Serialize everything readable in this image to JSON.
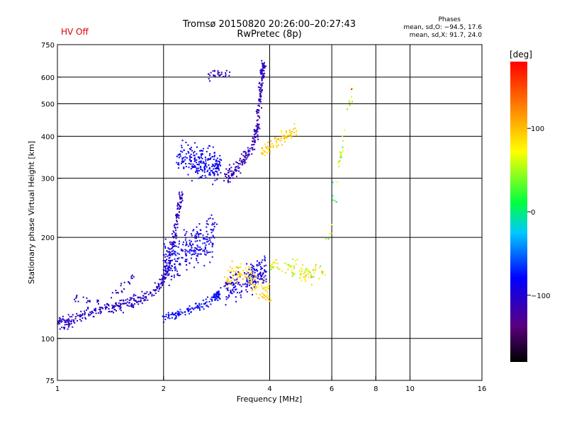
{
  "header": {
    "title": "Tromsø 20150820 20:26:00–20:27:43",
    "subtitle": "RwPretec (8p)",
    "status": "HV Off",
    "status_color": "#e00000"
  },
  "stats": {
    "heading": "Phases",
    "line_o": "mean, sd,O: −94.5, 17.6",
    "line_x": "mean, sd,X:  91.7, 24.0"
  },
  "colorbar": {
    "label": "[deg]",
    "ticks": [
      "100",
      "0",
      "−100"
    ],
    "tick_values": [
      100,
      0,
      -100
    ],
    "range": [
      -180,
      180
    ]
  },
  "chart_data": {
    "type": "scatter",
    "xlabel": "Frequency [MHz]",
    "ylabel": "Stationary phase Virtual Height [km]",
    "xscale": "log",
    "yscale": "log",
    "xlim": [
      1,
      16
    ],
    "ylim": [
      75,
      750
    ],
    "xticks": [
      1,
      2,
      4,
      6,
      8,
      10,
      16
    ],
    "xtick_labels": [
      "1",
      "2",
      "4",
      "6",
      "8",
      "10",
      "16"
    ],
    "yticks": [
      75,
      100,
      200,
      300,
      400,
      500,
      600,
      750
    ],
    "ytick_labels": [
      "75",
      "100",
      "200",
      "300",
      "400",
      "500",
      "600",
      "750"
    ],
    "vgrid": [
      2,
      4,
      6,
      8,
      10
    ],
    "hgrid": [
      100,
      200,
      300,
      400,
      500,
      600
    ],
    "grid": true,
    "color_by": "phase [deg]",
    "trace_groups": [
      {
        "points": [
          [
            1.0,
            113
          ],
          [
            1.05,
            111
          ],
          [
            1.1,
            114
          ],
          [
            1.2,
            118
          ],
          [
            1.3,
            121
          ],
          [
            1.4,
            124
          ],
          [
            1.5,
            126
          ],
          [
            1.6,
            128
          ],
          [
            1.7,
            131
          ],
          [
            1.8,
            134
          ],
          [
            1.9,
            140
          ],
          [
            2.0,
            148
          ],
          [
            2.05,
            160
          ],
          [
            2.1,
            178
          ],
          [
            2.15,
            200
          ],
          [
            2.2,
            235
          ],
          [
            2.25,
            270
          ]
        ],
        "spread": 0.035,
        "n": 420,
        "phase": -105,
        "phase_sd": 10
      },
      {
        "points": [
          [
            1.1,
            134
          ],
          [
            1.2,
            130
          ],
          [
            1.3,
            128
          ],
          [
            1.45,
            136
          ],
          [
            1.55,
            145
          ],
          [
            1.65,
            150
          ]
        ],
        "spread": 0.03,
        "n": 40,
        "phase": -105,
        "phase_sd": 10
      },
      {
        "points": [
          [
            2.0,
            116
          ],
          [
            2.2,
            118
          ],
          [
            2.4,
            122
          ],
          [
            2.6,
            126
          ],
          [
            2.8,
            132
          ],
          [
            2.9,
            138
          ]
        ],
        "spread": 0.025,
        "n": 140,
        "phase": -80,
        "phase_sd": 12
      },
      {
        "points": [
          [
            2.0,
            170
          ],
          [
            2.2,
            175
          ],
          [
            2.4,
            185
          ],
          [
            2.6,
            195
          ],
          [
            2.8,
            205
          ]
        ],
        "spread": 0.12,
        "n": 260,
        "phase": -90,
        "phase_sd": 20
      },
      {
        "points": [
          [
            2.2,
            350
          ],
          [
            2.4,
            340
          ],
          [
            2.6,
            330
          ],
          [
            2.8,
            328
          ],
          [
            2.9,
            325
          ]
        ],
        "spread": 0.09,
        "n": 230,
        "phase": -85,
        "phase_sd": 15
      },
      {
        "points": [
          [
            2.7,
            600
          ],
          [
            2.8,
            610
          ],
          [
            3.1,
            615
          ]
        ],
        "spread": 0.03,
        "n": 30,
        "phase": -110,
        "phase_sd": 10
      },
      {
        "points": [
          [
            3.0,
            300
          ],
          [
            3.2,
            320
          ],
          [
            3.4,
            345
          ],
          [
            3.6,
            380
          ],
          [
            3.7,
            430
          ],
          [
            3.75,
            520
          ],
          [
            3.8,
            610
          ],
          [
            3.85,
            650
          ]
        ],
        "spread": 0.04,
        "n": 260,
        "phase": -110,
        "phase_sd": 15
      },
      {
        "points": [
          [
            3.0,
            140
          ],
          [
            3.2,
            145
          ],
          [
            3.5,
            150
          ],
          [
            3.7,
            155
          ],
          [
            3.9,
            160
          ]
        ],
        "spread": 0.08,
        "n": 200,
        "phase": -95,
        "phase_sd": 20
      },
      {
        "points": [
          [
            3.0,
            150
          ],
          [
            3.2,
            160
          ],
          [
            3.5,
            150
          ],
          [
            3.8,
            140
          ],
          [
            4.0,
            135
          ]
        ],
        "spread": 0.06,
        "n": 110,
        "phase": 90,
        "phase_sd": 15
      },
      {
        "points": [
          [
            3.8,
            360
          ],
          [
            4.0,
            370
          ],
          [
            4.2,
            390
          ],
          [
            4.5,
            400
          ],
          [
            4.8,
            420
          ]
        ],
        "spread": 0.04,
        "n": 80,
        "phase": 95,
        "phase_sd": 15
      },
      {
        "points": [
          [
            4.0,
            165
          ],
          [
            4.4,
            165
          ],
          [
            4.8,
            160
          ],
          [
            5.2,
            155
          ],
          [
            5.7,
            160
          ]
        ],
        "spread": 0.05,
        "n": 90,
        "phase": 70,
        "phase_sd": 40
      },
      {
        "points": [
          [
            5.8,
            180
          ],
          [
            6.2,
            300
          ],
          [
            6.6,
            450
          ],
          [
            7.0,
            600
          ]
        ],
        "spread": 0.06,
        "n": 35,
        "phase": 60,
        "phase_sd": 80
      }
    ]
  }
}
